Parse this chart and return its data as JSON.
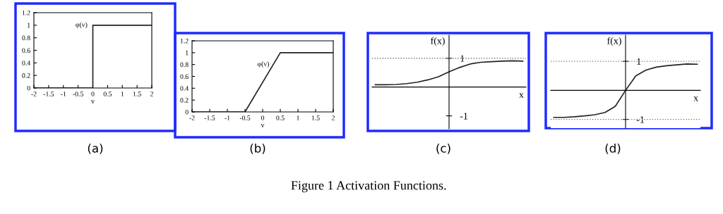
{
  "chart_data": [
    {
      "type": "line",
      "xlabel": "v",
      "x": [
        -2,
        0,
        0,
        2
      ],
      "values": [
        0,
        0,
        1,
        1
      ],
      "color": "#222222",
      "xlim": [
        -2,
        2
      ],
      "ylim": [
        0,
        1.2
      ],
      "xticks": [
        -2,
        -1.5,
        -1,
        -0.5,
        0,
        0.5,
        1,
        1.5,
        2
      ],
      "yticks": [
        0,
        0.2,
        0.4,
        0.6,
        0.8,
        1,
        1.2
      ],
      "annotations": [
        "(a)",
        {
          "text": "φ(v)",
          "x": -0.05,
          "y": 1.0
        }
      ]
    },
    {
      "type": "line",
      "xlabel": "v",
      "x": [
        -2,
        -0.5,
        0.5,
        2
      ],
      "values": [
        0,
        0,
        1,
        1
      ],
      "color": "#222222",
      "xlim": [
        -2,
        2
      ],
      "ylim": [
        0,
        1.2
      ],
      "xticks": [
        -2,
        -1.5,
        -1,
        -0.5,
        0,
        0.5,
        1,
        1.5,
        2
      ],
      "yticks": [
        0,
        0.2,
        0.4,
        0.6,
        0.8,
        1,
        1.2
      ],
      "annotations": [
        "(b)",
        {
          "text": "φ(v)",
          "x": 0.3,
          "y": 0.8
        }
      ]
    },
    {
      "type": "line",
      "xlabel": "x",
      "ylabel": "f(x)",
      "categories": [
        null,
        null,
        null,
        null,
        null,
        null,
        null,
        null,
        null,
        null,
        null,
        null,
        null,
        null,
        null
      ],
      "values": [
        0.08,
        0.08,
        0.09,
        0.12,
        0.17,
        0.25,
        0.36,
        0.53,
        0.68,
        0.8,
        0.86,
        0.88,
        0.9,
        0.91,
        0.9
      ],
      "color": "#222222",
      "ylim": [
        -1.45,
        1.8
      ],
      "yticks": [
        1,
        -1
      ],
      "ref_lines": [
        {
          "axis": "y",
          "value": 1,
          "color": "#777777",
          "line_style": "dotted"
        }
      ],
      "annotations": [
        "(c)"
      ]
    },
    {
      "type": "line",
      "xlabel": "x",
      "ylabel": "f(x)",
      "categories": [
        null,
        null,
        null,
        null,
        null,
        null,
        null,
        null,
        null,
        null,
        null,
        null,
        null,
        null,
        null
      ],
      "values": [
        -0.93,
        -0.93,
        -0.91,
        -0.88,
        -0.84,
        -0.76,
        -0.55,
        0,
        0.5,
        0.7,
        0.8,
        0.85,
        0.88,
        0.91,
        0.9
      ],
      "color": "#222222",
      "ylim": [
        -1.3,
        1.9
      ],
      "yticks": [
        1,
        -1
      ],
      "ref_lines": [
        {
          "axis": "y",
          "value": 1,
          "color": "#777777",
          "line_style": "dotted"
        },
        {
          "axis": "y",
          "value": -1,
          "color": "#777777",
          "line_style": "dotted"
        }
      ],
      "annotations": [
        "(d)",
        "Figure 1 Activation Functions."
      ]
    }
  ]
}
